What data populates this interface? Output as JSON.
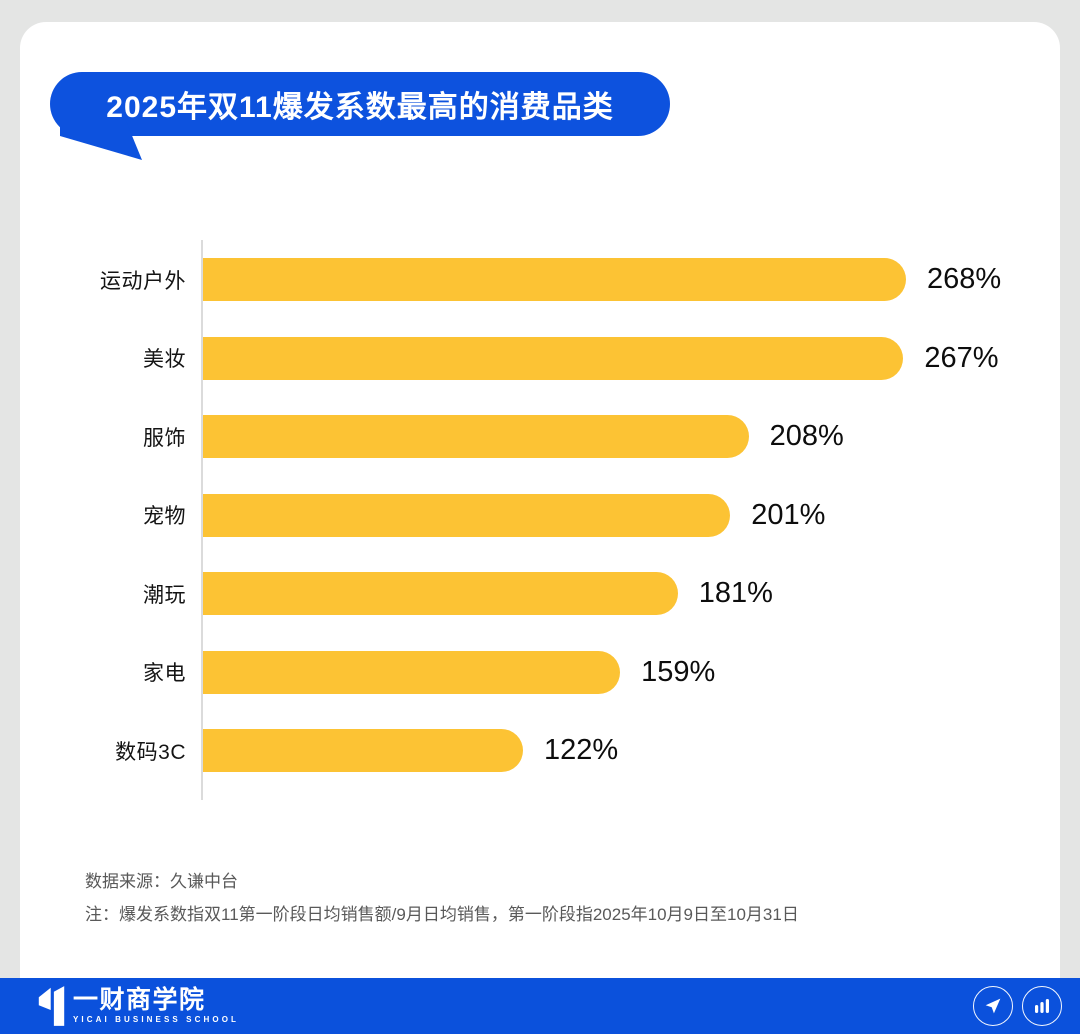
{
  "page": {
    "background_color": "#E4E5E4",
    "card_color": "#FFFFFF"
  },
  "title": {
    "text": "2025年双11爆发系数最高的消费品类",
    "bubble_color": "#0D52DE",
    "text_color": "#FFFFFF"
  },
  "chart_data": {
    "type": "bar",
    "orientation": "horizontal",
    "title": "2025年双11爆发系数最高的消费品类",
    "categories": [
      "运动户外",
      "美妆",
      "服饰",
      "宠物",
      "潮玩",
      "家电",
      "数码3C"
    ],
    "values": [
      268,
      267,
      208,
      201,
      181,
      159,
      122
    ],
    "value_labels": [
      "268%",
      "267%",
      "208%",
      "201%",
      "181%",
      "159%",
      "122%"
    ],
    "unit": "%",
    "bar_color": "#FCC334",
    "xlim": [
      0,
      280
    ],
    "grid": false,
    "legend": false,
    "xlabel": "",
    "ylabel": ""
  },
  "notes": {
    "source": "数据来源：久谦中台",
    "note": "注：爆发系数指双11第一阶段日均销售额/9月日均销售，第一阶段指2025年10月9日至10月31日"
  },
  "footer": {
    "background_color": "#0B51DC",
    "logo_cn": "一财商学院",
    "logo_en": "YICAI BUSINESS SCHOOL",
    "icons": [
      "send-icon",
      "bar-chart-icon"
    ]
  }
}
